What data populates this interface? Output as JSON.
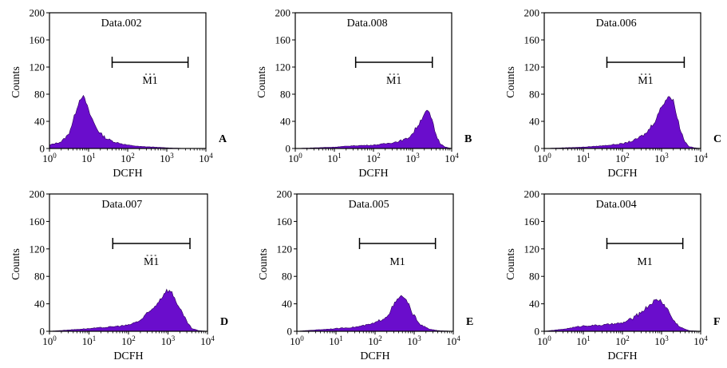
{
  "figure": {
    "fill_color": "#6a0dcc",
    "edge_color": "#2a0055"
  },
  "chart_data": [
    {
      "type": "area",
      "panel_letter": "A",
      "title": "Data.002",
      "xlabel": "DCFH",
      "ylabel": "Counts",
      "x_scale": "log",
      "xlim": [
        1,
        10000
      ],
      "ylim": [
        0,
        200
      ],
      "x_ticks": [
        "10⁰",
        "10¹",
        "10²",
        "10³",
        "10⁴"
      ],
      "y_ticks": [
        "0",
        "40",
        "80",
        "120",
        "160",
        "200"
      ],
      "gate": {
        "label": "M1",
        "from": 40,
        "to": 3500,
        "label_clipped": true
      },
      "series": [
        {
          "x": [
            1,
            2,
            3,
            4,
            5,
            6,
            7,
            8,
            9,
            10,
            12,
            15,
            20,
            30,
            50,
            100,
            200,
            500,
            1000,
            3000,
            10000
          ],
          "y": [
            5,
            10,
            20,
            40,
            60,
            73,
            78,
            72,
            65,
            55,
            45,
            33,
            22,
            14,
            9,
            5,
            3,
            2,
            1,
            0,
            0
          ]
        }
      ]
    },
    {
      "type": "area",
      "panel_letter": "B",
      "title": "Data.008",
      "xlabel": "DCFH",
      "ylabel": "Counts",
      "x_scale": "log",
      "xlim": [
        1,
        10000
      ],
      "ylim": [
        0,
        200
      ],
      "x_ticks": [
        "10⁰",
        "10¹",
        "10²",
        "10³",
        "10⁴"
      ],
      "y_ticks": [
        "0",
        "40",
        "80",
        "120",
        "160",
        "200"
      ],
      "gate": {
        "label": "M1",
        "from": 35,
        "to": 3200,
        "label_clipped": true
      },
      "series": [
        {
          "x": [
            1,
            3,
            10,
            30,
            100,
            200,
            400,
            700,
            1000,
            1500,
            2000,
            2500,
            3000,
            4000,
            5000,
            7000,
            10000
          ],
          "y": [
            0,
            1,
            2,
            4,
            5,
            7,
            10,
            14,
            22,
            38,
            52,
            55,
            45,
            20,
            8,
            2,
            0
          ]
        }
      ]
    },
    {
      "type": "area",
      "panel_letter": "C",
      "title": "Data.006",
      "xlabel": "DCFH",
      "ylabel": "Counts",
      "x_scale": "log",
      "xlim": [
        1,
        10000
      ],
      "ylim": [
        0,
        200
      ],
      "x_ticks": [
        "10⁰",
        "10¹",
        "10²",
        "10³",
        "10⁴"
      ],
      "y_ticks": [
        "0",
        "40",
        "80",
        "120",
        "160",
        "200"
      ],
      "gate": {
        "label": "M1",
        "from": 40,
        "to": 3800,
        "label_clipped": true
      },
      "series": [
        {
          "x": [
            1,
            3,
            10,
            30,
            100,
            200,
            400,
            700,
            1000,
            1500,
            2000,
            2500,
            3000,
            4000,
            5000,
            7000,
            10000
          ],
          "y": [
            0,
            1,
            2,
            4,
            7,
            12,
            22,
            42,
            62,
            78,
            70,
            48,
            28,
            10,
            3,
            1,
            0
          ]
        }
      ]
    },
    {
      "type": "area",
      "panel_letter": "D",
      "title": "Data.007",
      "xlabel": "DCFH",
      "ylabel": "Counts",
      "x_scale": "log",
      "xlim": [
        1,
        10000
      ],
      "ylim": [
        0,
        200
      ],
      "x_ticks": [
        "10⁰",
        "10¹",
        "10²",
        "10³",
        "10⁴"
      ],
      "y_ticks": [
        "0",
        "40",
        "80",
        "120",
        "160",
        "200"
      ],
      "gate": {
        "label": "M1",
        "from": 40,
        "to": 3600,
        "label_clipped": true
      },
      "series": [
        {
          "x": [
            1,
            3,
            10,
            30,
            100,
            200,
            400,
            700,
            900,
            1200,
            1500,
            2000,
            3000,
            4000,
            6000,
            10000
          ],
          "y": [
            0,
            2,
            4,
            6,
            9,
            16,
            32,
            50,
            60,
            58,
            48,
            32,
            14,
            4,
            1,
            0
          ]
        }
      ]
    },
    {
      "type": "area",
      "panel_letter": "E",
      "title": "Data.005",
      "xlabel": "DCFH",
      "ylabel": "Counts",
      "x_scale": "log",
      "xlim": [
        1,
        10000
      ],
      "ylim": [
        0,
        200
      ],
      "x_ticks": [
        "10⁰",
        "10¹",
        "10²",
        "10³",
        "10⁴"
      ],
      "y_ticks": [
        "0",
        "40",
        "80",
        "120",
        "160",
        "200"
      ],
      "gate": {
        "label": "M1",
        "from": 40,
        "to": 3500,
        "label_clipped": false
      },
      "series": [
        {
          "x": [
            1,
            3,
            10,
            30,
            60,
            100,
            200,
            300,
            400,
            500,
            700,
            1000,
            1500,
            2500,
            4000,
            10000
          ],
          "y": [
            0,
            2,
            4,
            6,
            9,
            12,
            22,
            38,
            48,
            52,
            40,
            22,
            9,
            3,
            1,
            0
          ]
        }
      ]
    },
    {
      "type": "area",
      "panel_letter": "F",
      "title": "Data.004",
      "xlabel": "DCFH",
      "ylabel": "Counts",
      "x_scale": "log",
      "xlim": [
        1,
        10000
      ],
      "ylim": [
        0,
        200
      ],
      "x_ticks": [
        "10⁰",
        "10¹",
        "10²",
        "10³",
        "10⁴"
      ],
      "y_ticks": [
        "0",
        "40",
        "80",
        "120",
        "160",
        "200"
      ],
      "gate": {
        "label": "M1",
        "from": 40,
        "to": 3500,
        "label_clipped": false
      },
      "series": [
        {
          "x": [
            1,
            3,
            10,
            30,
            100,
            200,
            400,
            600,
            800,
            1000,
            1500,
            2000,
            3000,
            5000,
            10000
          ],
          "y": [
            0,
            3,
            8,
            9,
            12,
            20,
            34,
            43,
            46,
            44,
            30,
            16,
            6,
            1,
            0
          ]
        }
      ]
    }
  ]
}
